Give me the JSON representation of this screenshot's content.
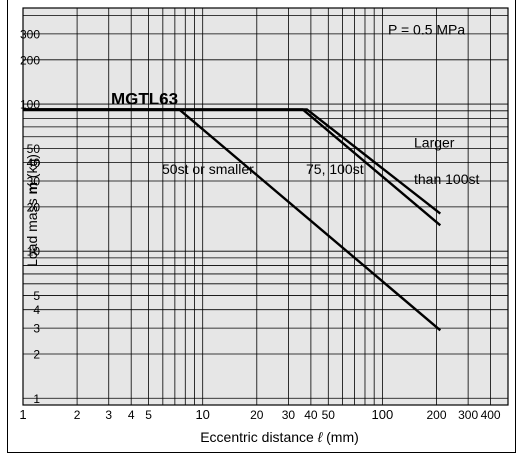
{
  "chart_data": {
    "type": "line",
    "title": "",
    "model_label": "MGTL63",
    "pressure_label": "P = 0.5 MPa",
    "xlabel_prefix": "Eccentric distance ",
    "xlabel_symbol": "ℓ",
    "xlabel_suffix": " (mm)",
    "ylabel_prefix": "Load mass ",
    "ylabel_bold": "m",
    "ylabel_suffix": " (kg)",
    "x_scale": "log",
    "y_scale": "log",
    "xlim": [
      1,
      500
    ],
    "ylim": [
      0.9,
      450
    ],
    "x_ticks": [
      1,
      2,
      3,
      4,
      5,
      10,
      20,
      30,
      40,
      50,
      100,
      200,
      300,
      400
    ],
    "y_ticks": [
      1,
      2,
      3,
      4,
      5,
      10,
      20,
      30,
      40,
      50,
      100,
      200,
      300
    ],
    "background_color": "#e6e6e6",
    "grid": true,
    "series": [
      {
        "name": "50st or smaller",
        "x": [
          1,
          7.4,
          210
        ],
        "y": [
          92,
          92,
          2.9
        ]
      },
      {
        "name": "75, 100st",
        "x": [
          1,
          36,
          210
        ],
        "y": [
          92,
          92,
          15
        ]
      },
      {
        "name": "Larger than 100st",
        "x": [
          1,
          38,
          210
        ],
        "y": [
          92,
          92,
          18
        ]
      }
    ],
    "annotations": {
      "small": "50st or smaller",
      "mid": "75, 100st",
      "large_line1": "Larger",
      "large_line2": "than 100st"
    }
  }
}
